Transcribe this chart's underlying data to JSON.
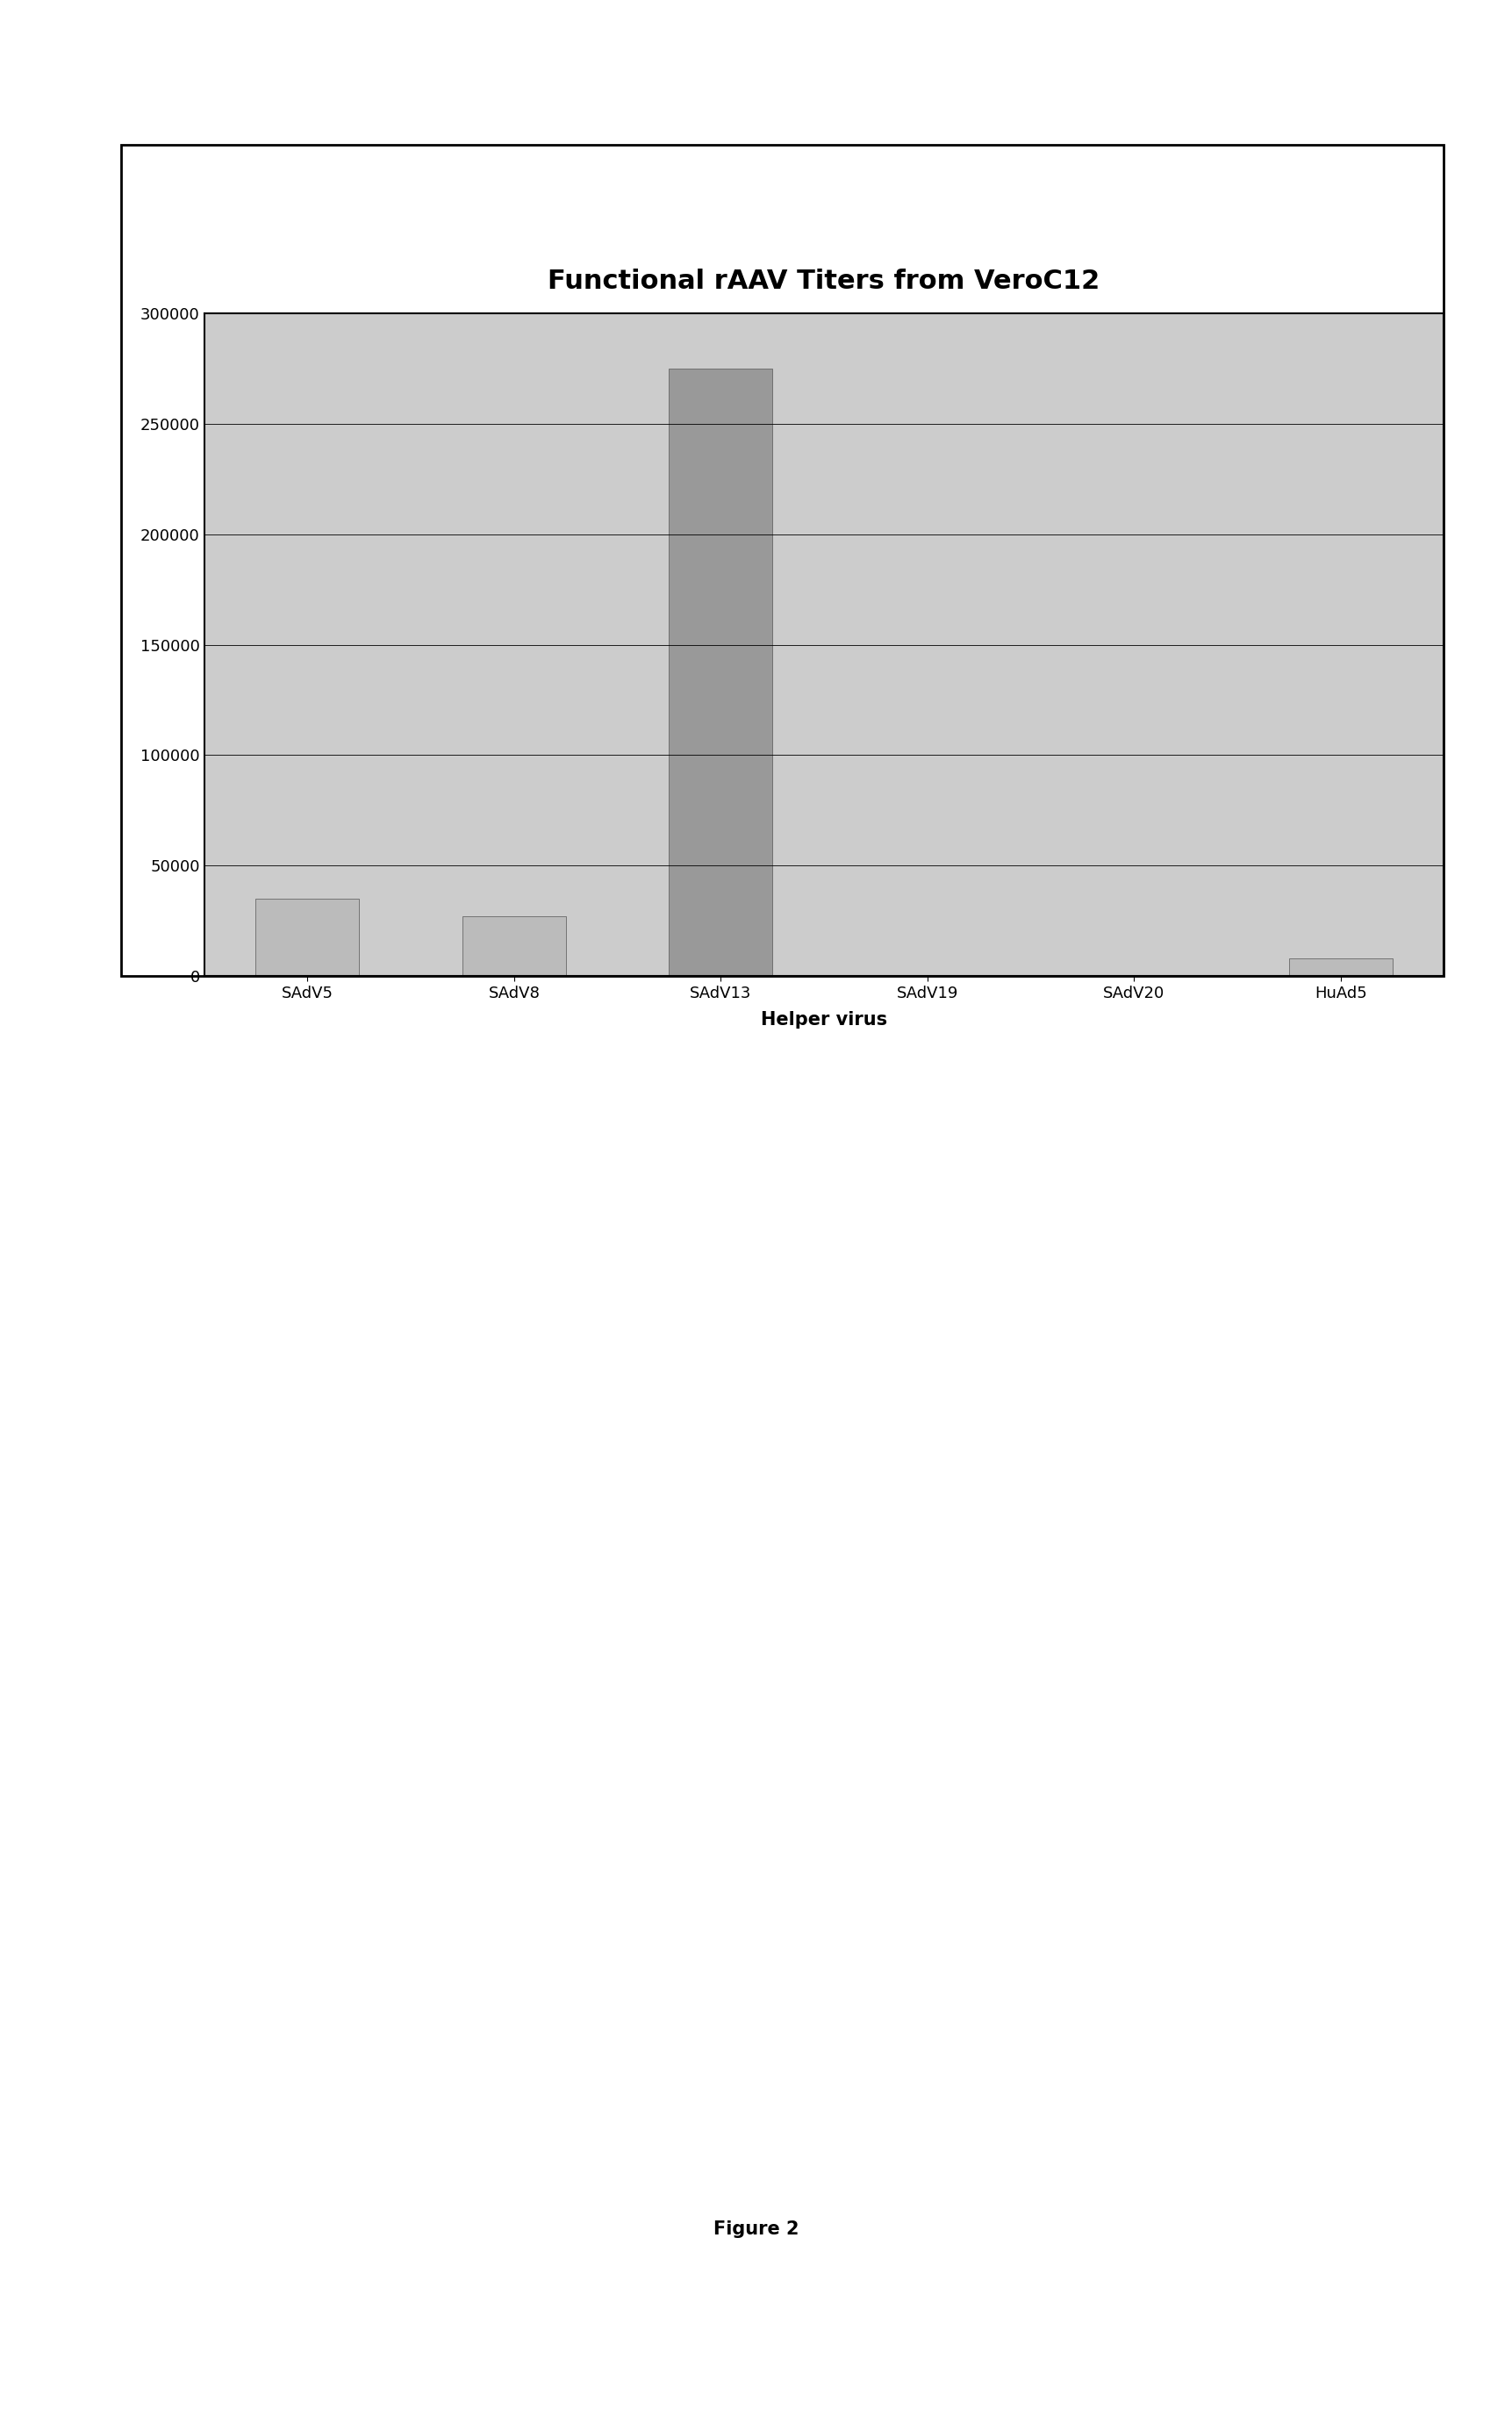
{
  "title": "Functional rAAV Titers from VeroC12",
  "categories": [
    "SAdV5",
    "SAdV8",
    "SAdV13",
    "SAdV19",
    "SAdV20",
    "HuAd5"
  ],
  "values": [
    35000,
    27000,
    275000,
    0,
    0,
    8000
  ],
  "bar_color": "#bbbbbb",
  "bar_color_sadv13": "#999999",
  "xlabel": "Helper virus",
  "ylim": [
    0,
    300000
  ],
  "yticks": [
    0,
    50000,
    100000,
    150000,
    200000,
    250000,
    300000
  ],
  "figure_label": "Figure 2",
  "title_fontsize": 22,
  "xlabel_fontsize": 15,
  "tick_fontsize": 13,
  "plot_bg_color": "#cccccc",
  "outer_bg_color": "#ffffff",
  "figure_width": 17.23,
  "figure_height": 27.46
}
